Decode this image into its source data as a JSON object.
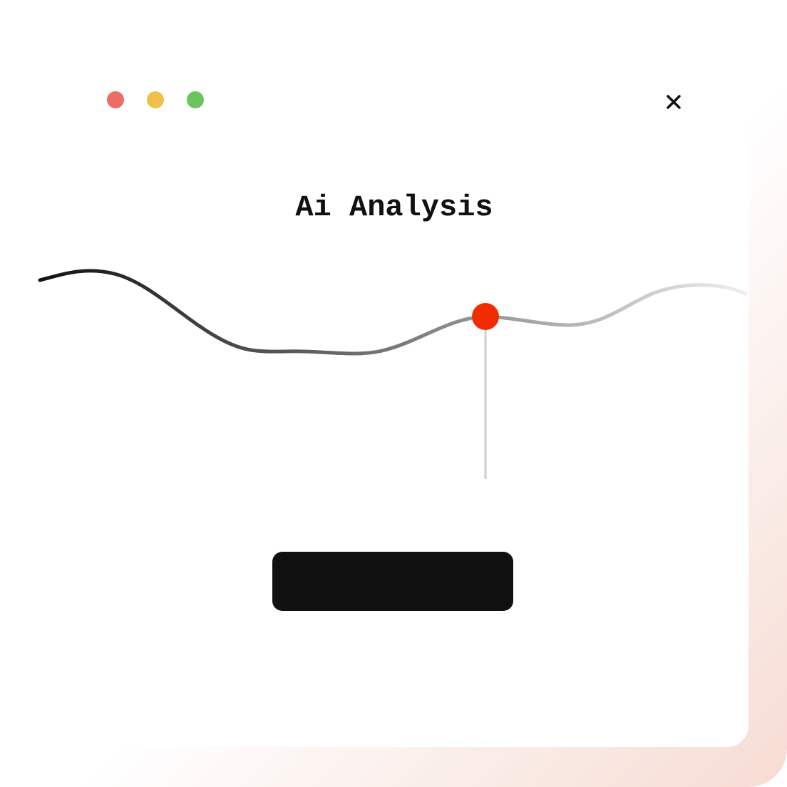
{
  "window": {
    "title": "Ai Analysis"
  }
}
